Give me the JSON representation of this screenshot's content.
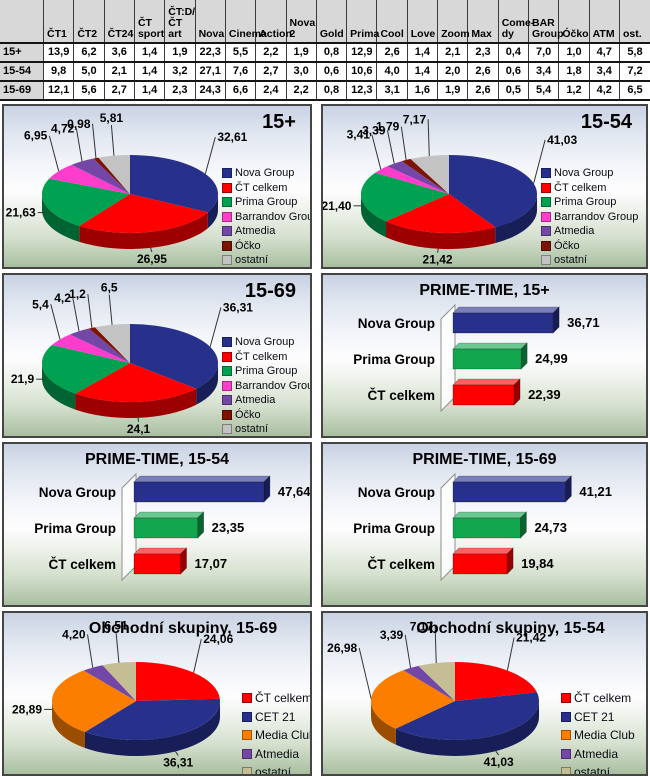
{
  "table": {
    "columns": [
      "",
      "ČT1",
      "ČT2",
      "ČT24",
      "ČT\nsport",
      "ČT:D/\nČT art",
      "Nova",
      "Cinema",
      "Action",
      "Nova 2",
      "Gold",
      "Prima",
      "Cool",
      "Love",
      "Zoom",
      "Max",
      "Come-\ndy",
      "BAR\nGroup",
      "Óčko",
      "ATM",
      "ost."
    ],
    "rows": [
      {
        "label": "15+",
        "values": [
          "13,9",
          "6,2",
          "3,6",
          "1,4",
          "1,9",
          "22,3",
          "5,5",
          "2,2",
          "1,9",
          "0,8",
          "12,9",
          "2,6",
          "1,4",
          "2,1",
          "2,3",
          "0,4",
          "7,0",
          "1,0",
          "4,7",
          "5,8"
        ]
      },
      {
        "label": "15-54",
        "values": [
          "9,8",
          "5,0",
          "2,1",
          "1,4",
          "3,2",
          "27,1",
          "7,6",
          "2,7",
          "3,0",
          "0,6",
          "10,6",
          "4,0",
          "1,4",
          "2,0",
          "2,6",
          "0,6",
          "3,4",
          "1,8",
          "3,4",
          "7,2"
        ]
      },
      {
        "label": "15-69",
        "values": [
          "12,1",
          "5,6",
          "2,7",
          "1,4",
          "2,3",
          "24,3",
          "6,6",
          "2,4",
          "2,2",
          "0,8",
          "12,3",
          "3,1",
          "1,6",
          "1,9",
          "2,6",
          "0,5",
          "5,4",
          "1,2",
          "4,2",
          "6,5"
        ]
      }
    ]
  },
  "colors": {
    "navy": "#27318c",
    "red": "#fe0000",
    "green": "#00a150",
    "magenta": "#ff3dcc",
    "purple": "#7347a5",
    "maroon": "#7c1303",
    "silver": "#c3c3c3",
    "orange": "#fb7e00",
    "tan": "#c5bd94",
    "bar_green": "#12a74f"
  },
  "chart_data": [
    {
      "type": "pie",
      "title": "15+",
      "legend_position": "right",
      "slices": [
        {
          "label": "Nova Group",
          "value": 32.61,
          "text": "32,61",
          "color": "#27318c"
        },
        {
          "label": "ČT celkem",
          "value": 26.95,
          "text": "26,95",
          "color": "#fe0000"
        },
        {
          "label": "Prima Group",
          "value": 21.63,
          "text": "21,63",
          "color": "#00a150"
        },
        {
          "label": "Barrandov Group",
          "value": 6.95,
          "text": "6,95",
          "color": "#ff3dcc"
        },
        {
          "label": "Atmedia",
          "value": 4.72,
          "text": "4,72",
          "color": "#7347a5"
        },
        {
          "label": "Óčko",
          "value": 0.98,
          "text": "0,98",
          "color": "#7c1303"
        },
        {
          "label": "ostatní",
          "value": 5.81,
          "text": "5,81",
          "color": "#c3c3c3"
        }
      ]
    },
    {
      "type": "pie",
      "title": "15-54",
      "legend_position": "right",
      "slices": [
        {
          "label": "Nova Group",
          "value": 41.03,
          "text": "41,03",
          "color": "#27318c"
        },
        {
          "label": "ČT celkem",
          "value": 21.42,
          "text": "21,42",
          "color": "#fe0000"
        },
        {
          "label": "Prima Group",
          "value": 21.4,
          "text": "21,40",
          "color": "#00a150"
        },
        {
          "label": "Barrandov Group",
          "value": 3.41,
          "text": "3,41",
          "color": "#ff3dcc"
        },
        {
          "label": "Atmedia",
          "value": 3.39,
          "text": "3,39",
          "color": "#7347a5"
        },
        {
          "label": "Óčko",
          "value": 1.79,
          "text": "1,79",
          "color": "#7c1303"
        },
        {
          "label": "ostatní",
          "value": 7.17,
          "text": "7,17",
          "color": "#c3c3c3"
        }
      ]
    },
    {
      "type": "pie",
      "title": "15-69",
      "legend_position": "right",
      "slices": [
        {
          "label": "Nova Group",
          "value": 36.31,
          "text": "36,31",
          "color": "#27318c"
        },
        {
          "label": "ČT celkem",
          "value": 24.1,
          "text": "24,1",
          "color": "#fe0000"
        },
        {
          "label": "Prima Group",
          "value": 21.9,
          "text": "21,9",
          "color": "#00a150"
        },
        {
          "label": "Barrandov Group",
          "value": 5.4,
          "text": "5,4",
          "color": "#ff3dcc"
        },
        {
          "label": "Atmedia",
          "value": 4.2,
          "text": "4,2",
          "color": "#7347a5"
        },
        {
          "label": "Óčko",
          "value": 1.2,
          "text": "1,2",
          "color": "#7c1303"
        },
        {
          "label": "ostatní",
          "value": 6.5,
          "text": "6,5",
          "color": "#c3c3c3"
        }
      ]
    },
    {
      "type": "bar",
      "title": "PRIME-TIME, 15+",
      "xlim": [
        0,
        55
      ],
      "grid": false,
      "categories": [
        "Nova Group",
        "Prima Group",
        "ČT celkem"
      ],
      "values": [
        36.71,
        24.99,
        22.39
      ],
      "labels": [
        "36,71",
        "24,99",
        "22,39"
      ],
      "colors": [
        "#27318c",
        "#12a74f",
        "#fe0000"
      ]
    },
    {
      "type": "bar",
      "title": "PRIME-TIME, 15-54",
      "xlim": [
        0,
        55
      ],
      "grid": false,
      "categories": [
        "Nova Group",
        "Prima Group",
        "ČT celkem"
      ],
      "values": [
        47.64,
        23.35,
        17.07
      ],
      "labels": [
        "47,64",
        "23,35",
        "17,07"
      ],
      "colors": [
        "#27318c",
        "#12a74f",
        "#fe0000"
      ]
    },
    {
      "type": "bar",
      "title": "PRIME-TIME, 15-69",
      "xlim": [
        0,
        55
      ],
      "grid": false,
      "categories": [
        "Nova Group",
        "Prima Group",
        "ČT celkem"
      ],
      "values": [
        41.21,
        24.73,
        19.84
      ],
      "labels": [
        "41,21",
        "24,73",
        "19,84"
      ],
      "colors": [
        "#27318c",
        "#12a74f",
        "#fe0000"
      ]
    },
    {
      "type": "pie",
      "title": "Obchodní skupiny, 15-69",
      "legend_position": "right",
      "slices": [
        {
          "label": "ČT celkem",
          "value": 24.06,
          "text": "24,06",
          "color": "#fe0000"
        },
        {
          "label": "CET 21",
          "value": 36.31,
          "text": "36,31",
          "color": "#27318c"
        },
        {
          "label": "Media Club",
          "value": 28.89,
          "text": "28,89",
          "color": "#fb7e00"
        },
        {
          "label": "Atmedia",
          "value": 4.2,
          "text": "4,20",
          "color": "#7347a5"
        },
        {
          "label": "ostatní",
          "value": 6.51,
          "text": "6,51",
          "color": "#c5bd94"
        }
      ]
    },
    {
      "type": "pie",
      "title": "Obchodní skupiny, 15-54",
      "legend_position": "right",
      "slices": [
        {
          "label": "ČT celkem",
          "value": 21.42,
          "text": "21,42",
          "color": "#fe0000"
        },
        {
          "label": "CET 21",
          "value": 41.03,
          "text": "41,03",
          "color": "#27318c"
        },
        {
          "label": "Media Club",
          "value": 26.98,
          "text": "26,98",
          "color": "#fb7e00"
        },
        {
          "label": "Atmedia",
          "value": 3.39,
          "text": "3,39",
          "color": "#7347a5"
        },
        {
          "label": "ostatní",
          "value": 7.17,
          "text": "7,17",
          "color": "#c5bd94"
        }
      ]
    }
  ]
}
